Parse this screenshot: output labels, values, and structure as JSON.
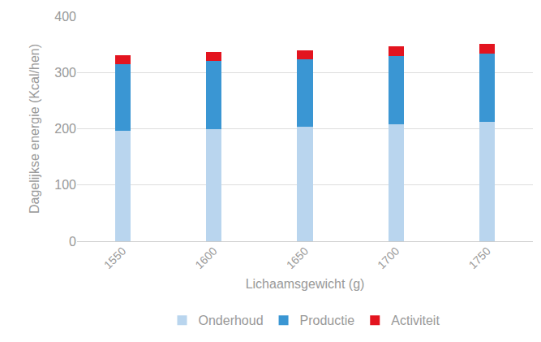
{
  "chart_data": {
    "type": "bar",
    "stacked": true,
    "x_label": "Lichaamsgewicht (g)",
    "y_label": "Dagelijkse energie (Kcal/hen)",
    "categories": [
      "1550",
      "1600",
      "1650",
      "1700",
      "1750"
    ],
    "series": [
      {
        "name": "Onderhoud",
        "color": "#b9d5ee",
        "values": [
          196,
          200,
          204,
          208,
          212
        ]
      },
      {
        "name": "Productie",
        "color": "#3a96d3",
        "values": [
          119,
          120,
          120,
          121,
          122
        ]
      },
      {
        "name": "Activiteit",
        "color": "#e3141f",
        "values": [
          15,
          16,
          16,
          17,
          17
        ]
      }
    ],
    "ylim": [
      0,
      400
    ],
    "yticks": [
      0,
      100,
      200,
      300,
      400
    ],
    "grid": true,
    "legend": "bottom"
  }
}
